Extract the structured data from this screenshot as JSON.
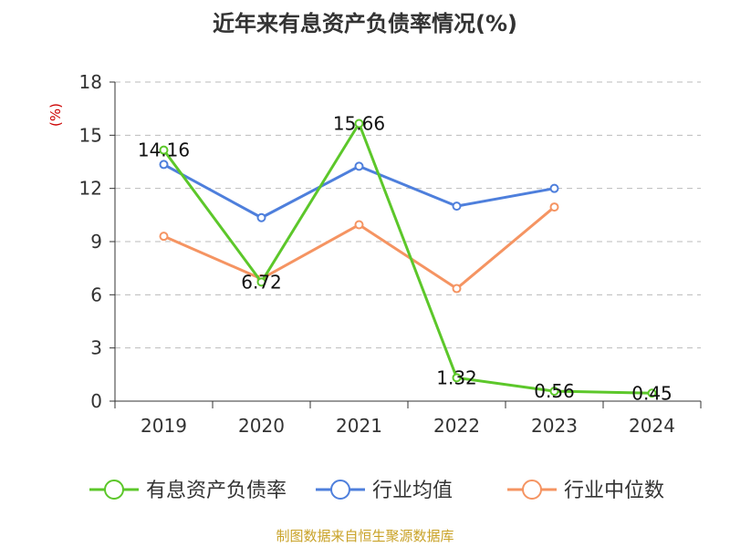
{
  "chart_data": {
    "type": "line",
    "title": "近年来有息资产负债率情况(%)",
    "ylabel": "(%)",
    "x": [
      "2019",
      "2020",
      "2021",
      "2022",
      "2023",
      "2024"
    ],
    "ylim": [
      0,
      18
    ],
    "yticks": [
      0,
      3,
      6,
      9,
      12,
      15,
      18
    ],
    "grid": true,
    "legend_position": "bottom",
    "series": [
      {
        "name": "有息资产负债率",
        "color": "#5cc72a",
        "values": [
          14.16,
          6.72,
          15.66,
          1.32,
          0.56,
          0.45
        ],
        "labels": [
          "14.16",
          "6.72",
          "15.66",
          "1.32",
          "0.56",
          "0.45"
        ]
      },
      {
        "name": "行业均值",
        "color": "#4e7fdc",
        "values": [
          13.35,
          10.35,
          13.25,
          11.0,
          12.0,
          null
        ]
      },
      {
        "name": "行业中位数",
        "color": "#f59462",
        "values": [
          9.3,
          6.9,
          9.95,
          6.35,
          10.95,
          null
        ]
      }
    ]
  },
  "source": "制图数据来自恒生聚源数据库",
  "colors": {
    "axis": "#333333",
    "grid": "#bbbbbb",
    "ylabel": "#cc0000",
    "source": "#c9a227"
  }
}
